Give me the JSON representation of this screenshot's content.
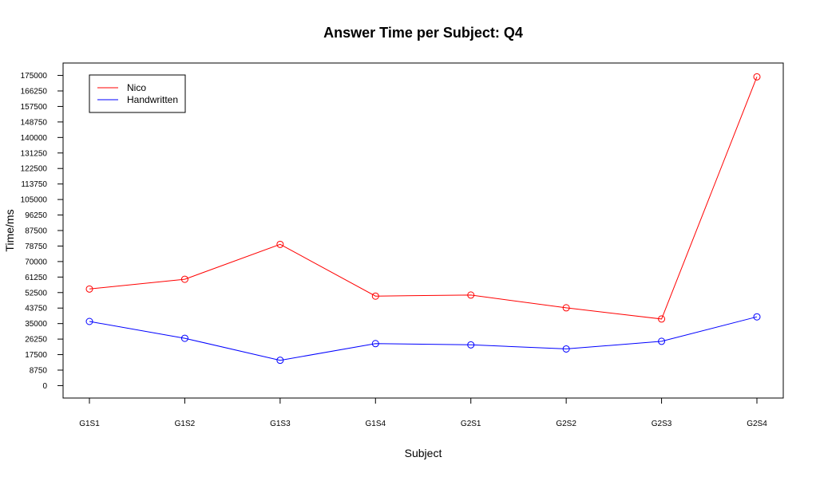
{
  "chart_data": {
    "type": "line",
    "title": "Answer Time per Subject: Q4",
    "xlabel": "Subject",
    "ylabel": "Time/ms",
    "categories": [
      "G1S1",
      "G1S2",
      "G1S3",
      "G1S4",
      "G2S1",
      "G2S2",
      "G2S3",
      "G2S4"
    ],
    "yticks": [
      0,
      8750,
      17500,
      26250,
      35000,
      43750,
      52500,
      61250,
      70000,
      78750,
      87500,
      96250,
      105000,
      113750,
      122500,
      131250,
      140000,
      148750,
      157500,
      166250,
      175000
    ],
    "ylim": [
      -7000,
      182000
    ],
    "grid": false,
    "legend_position": "top-left",
    "series": [
      {
        "name": "Nico",
        "color": "#ff0000",
        "values": [
          54500,
          60000,
          79700,
          50500,
          51100,
          43900,
          37600,
          174200
        ]
      },
      {
        "name": "Handwritten",
        "color": "#0000ff",
        "values": [
          36200,
          26700,
          14300,
          23700,
          23000,
          20700,
          25000,
          38800
        ]
      }
    ]
  }
}
